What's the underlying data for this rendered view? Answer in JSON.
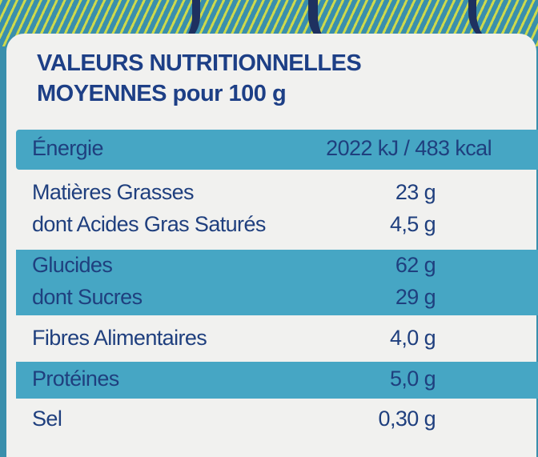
{
  "title": {
    "line1": "VALEURS NUTRITIONNELLES",
    "line2": "MOYENNES pour 100 g"
  },
  "rows": [
    {
      "label": "Énergie",
      "value": "2022 kJ / 483 kcal"
    },
    {
      "label": "Matières Grasses",
      "value": "23 g"
    },
    {
      "label": "dont Acides Gras Saturés",
      "value": "4,5 g"
    },
    {
      "label": "Glucides",
      "value": "62 g"
    },
    {
      "label": "dont Sucres",
      "value": "29 g"
    },
    {
      "label": "Fibres Alimentaires",
      "value": "4,0 g"
    },
    {
      "label": "Protéines",
      "value": "5,0 g"
    },
    {
      "label": "Sel",
      "value": "0,30 g"
    }
  ],
  "colors": {
    "text": "#1f3f7e",
    "band": "#46a6c4",
    "paper": "#f1f1ef",
    "background": "#3a8fac"
  }
}
